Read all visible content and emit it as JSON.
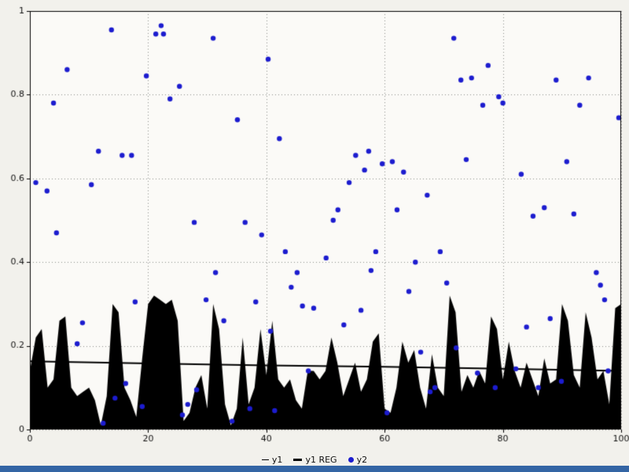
{
  "chart_data": {
    "type": "mixed",
    "title": "",
    "xlabel": "",
    "ylabel": "",
    "xlim": [
      0,
      100
    ],
    "ylim": [
      0,
      1
    ],
    "xticks": [
      0,
      20,
      40,
      60,
      80,
      100
    ],
    "yticks": [
      0,
      0.2,
      0.4,
      0.6,
      0.8,
      1
    ],
    "grid": true,
    "grid_style": "dotted",
    "legend_position": "bottom",
    "colors": {
      "background": "#f2f1ec",
      "plot_background": "#fbfaf7",
      "grid": "#8a8a8a",
      "frame": "#000000",
      "area_series": "#000000",
      "regression_line": "#000000",
      "scatter": "#1c1ccf",
      "bottom_strip": "#3465a4",
      "tick_label": "#111111"
    },
    "series": [
      {
        "name": "y1",
        "type": "area",
        "x_start": 0,
        "x_step": 1,
        "values": [
          0.14,
          0.22,
          0.24,
          0.1,
          0.12,
          0.26,
          0.27,
          0.1,
          0.08,
          0.09,
          0.1,
          0.07,
          0.01,
          0.08,
          0.3,
          0.28,
          0.1,
          0.07,
          0.03,
          0.17,
          0.3,
          0.32,
          0.31,
          0.3,
          0.31,
          0.26,
          0.02,
          0.04,
          0.1,
          0.13,
          0.05,
          0.3,
          0.24,
          0.06,
          0.01,
          0.05,
          0.22,
          0.06,
          0.1,
          0.24,
          0.13,
          0.26,
          0.12,
          0.1,
          0.12,
          0.07,
          0.05,
          0.14,
          0.14,
          0.12,
          0.14,
          0.22,
          0.16,
          0.08,
          0.12,
          0.16,
          0.09,
          0.12,
          0.21,
          0.23,
          0.05,
          0.04,
          0.1,
          0.21,
          0.16,
          0.19,
          0.1,
          0.05,
          0.18,
          0.1,
          0.08,
          0.32,
          0.28,
          0.09,
          0.13,
          0.1,
          0.14,
          0.11,
          0.27,
          0.24,
          0.12,
          0.21,
          0.14,
          0.1,
          0.16,
          0.12,
          0.08,
          0.17,
          0.11,
          0.12,
          0.3,
          0.26,
          0.13,
          0.1,
          0.28,
          0.22,
          0.12,
          0.14,
          0.06,
          0.29,
          0.3
        ]
      },
      {
        "name": "y1 REG",
        "type": "line",
        "points": [
          [
            0,
            0.163
          ],
          [
            20,
            0.158
          ],
          [
            40,
            0.153
          ],
          [
            60,
            0.15
          ],
          [
            80,
            0.145
          ],
          [
            100,
            0.14
          ]
        ]
      },
      {
        "name": "y2",
        "type": "scatter",
        "points": [
          [
            1,
            0.59
          ],
          [
            2.9,
            0.57
          ],
          [
            4,
            0.78
          ],
          [
            4.5,
            0.47
          ],
          [
            6.3,
            0.86
          ],
          [
            8,
            0.205
          ],
          [
            8.9,
            0.255
          ],
          [
            10.4,
            0.585
          ],
          [
            11.6,
            0.665
          ],
          [
            12.4,
            0.015
          ],
          [
            13.8,
            0.955
          ],
          [
            14.4,
            0.075
          ],
          [
            15.6,
            0.655
          ],
          [
            16.2,
            0.11
          ],
          [
            17.2,
            0.655
          ],
          [
            17.8,
            0.305
          ],
          [
            19,
            0.055
          ],
          [
            19.7,
            0.845
          ],
          [
            21.3,
            0.945
          ],
          [
            22.2,
            0.965
          ],
          [
            22.6,
            0.945
          ],
          [
            23.7,
            0.79
          ],
          [
            25.3,
            0.82
          ],
          [
            25.8,
            0.035
          ],
          [
            26.7,
            0.06
          ],
          [
            27.8,
            0.495
          ],
          [
            28.2,
            0.095
          ],
          [
            29.8,
            0.31
          ],
          [
            31,
            0.935
          ],
          [
            31.4,
            0.375
          ],
          [
            32.8,
            0.26
          ],
          [
            34.2,
            0.02
          ],
          [
            35.1,
            0.74
          ],
          [
            36.4,
            0.495
          ],
          [
            37.2,
            0.05
          ],
          [
            38.2,
            0.305
          ],
          [
            39.2,
            0.465
          ],
          [
            40.3,
            0.885
          ],
          [
            40.7,
            0.235
          ],
          [
            41.4,
            0.045
          ],
          [
            42.2,
            0.695
          ],
          [
            43.2,
            0.425
          ],
          [
            44.2,
            0.34
          ],
          [
            45.2,
            0.375
          ],
          [
            46.1,
            0.295
          ],
          [
            47.1,
            0.14
          ],
          [
            48,
            0.29
          ],
          [
            50.1,
            0.41
          ],
          [
            51.3,
            0.5
          ],
          [
            52.1,
            0.525
          ],
          [
            53.1,
            0.25
          ],
          [
            54,
            0.59
          ],
          [
            55.1,
            0.655
          ],
          [
            56,
            0.285
          ],
          [
            56.6,
            0.62
          ],
          [
            57.3,
            0.665
          ],
          [
            57.7,
            0.38
          ],
          [
            58.5,
            0.425
          ],
          [
            59.6,
            0.635
          ],
          [
            60.4,
            0.04
          ],
          [
            61.3,
            0.64
          ],
          [
            62.1,
            0.525
          ],
          [
            63.2,
            0.615
          ],
          [
            64.1,
            0.33
          ],
          [
            65.2,
            0.4
          ],
          [
            66.1,
            0.185
          ],
          [
            67.2,
            0.56
          ],
          [
            67.7,
            0.09
          ],
          [
            68.5,
            0.1
          ],
          [
            69.4,
            0.425
          ],
          [
            70.5,
            0.35
          ],
          [
            71.7,
            0.935
          ],
          [
            72.1,
            0.195
          ],
          [
            72.9,
            0.835
          ],
          [
            73.8,
            0.645
          ],
          [
            74.7,
            0.84
          ],
          [
            75.7,
            0.135
          ],
          [
            76.6,
            0.775
          ],
          [
            77.5,
            0.87
          ],
          [
            78.7,
            0.1
          ],
          [
            79.3,
            0.795
          ],
          [
            80,
            0.78
          ],
          [
            82.2,
            0.145
          ],
          [
            83.1,
            0.61
          ],
          [
            84,
            0.245
          ],
          [
            85.1,
            0.51
          ],
          [
            86,
            0.1
          ],
          [
            87,
            0.53
          ],
          [
            88,
            0.265
          ],
          [
            89,
            0.835
          ],
          [
            89.9,
            0.115
          ],
          [
            90.8,
            0.64
          ],
          [
            92,
            0.515
          ],
          [
            93,
            0.775
          ],
          [
            94.5,
            0.84
          ],
          [
            95.8,
            0.375
          ],
          [
            96.5,
            0.345
          ],
          [
            97.2,
            0.31
          ],
          [
            97.8,
            0.14
          ],
          [
            99.6,
            0.745
          ]
        ]
      }
    ]
  },
  "legend": {
    "items": [
      {
        "label": "y1"
      },
      {
        "label": "y1 REG"
      },
      {
        "label": "y2"
      }
    ]
  }
}
